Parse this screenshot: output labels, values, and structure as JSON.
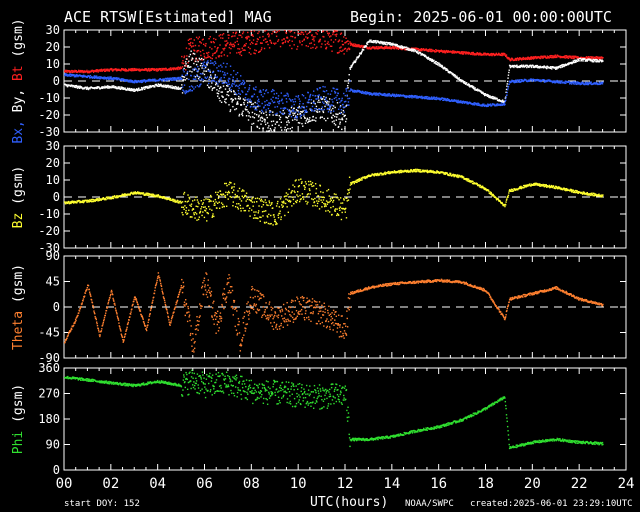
{
  "header": {
    "title": "ACE RTSW[Estimated] MAG",
    "begin": "Begin: 2025-06-01 00:00:00UTC"
  },
  "footer": {
    "start_doy": "start DOY:  152",
    "xlabel": "UTC(hours)",
    "credit": "NOAA/SWPC",
    "created": "created:2025-06-01 23:29:10UTC"
  },
  "colors": {
    "background": "#000000",
    "axes": "#ffffff",
    "bx": "#3060ff",
    "by": "#ffffff",
    "bt": "#ff2020",
    "bz": "#ffff30",
    "theta": "#ff8030",
    "phi": "#30e030"
  },
  "chart_data": [
    {
      "type": "scatter",
      "panel": "Bx, By, Bt",
      "ylabel_parts": [
        {
          "text": "Bx,",
          "color": "#3060ff"
        },
        {
          "text": " By,",
          "color": "#ffffff"
        },
        {
          "text": " Bt",
          "color": "#ff2020"
        },
        {
          "text": "  (gsm)",
          "color": "#ffffff"
        }
      ],
      "ylim": [
        -30,
        30
      ],
      "yticks": [
        30,
        20,
        10,
        0,
        -10,
        -20,
        -30
      ],
      "zero_line": true,
      "series": [
        {
          "name": "Bt",
          "color": "#ff2020",
          "x": [
            0,
            1,
            2,
            3,
            4,
            5,
            5.3,
            6,
            7,
            8,
            9,
            10,
            11,
            12,
            12.2,
            13,
            14,
            15,
            16,
            17,
            18,
            18.8,
            19,
            20,
            21,
            22,
            23
          ],
          "y": [
            6,
            6,
            7,
            7,
            7,
            8,
            18,
            20,
            22,
            23,
            28,
            26,
            26,
            23,
            22,
            20,
            20,
            19,
            18,
            17,
            16,
            16,
            13,
            14,
            15,
            14,
            14
          ]
        },
        {
          "name": "By",
          "color": "#ffffff",
          "x": [
            0,
            1,
            2,
            3,
            4,
            5,
            5.3,
            6,
            7,
            8,
            9,
            10,
            11,
            12,
            12.2,
            13,
            14,
            15,
            16,
            17,
            18,
            18.8,
            19,
            20,
            21,
            22,
            23
          ],
          "y": [
            -2,
            -4,
            -3,
            -5,
            -2,
            -4,
            12,
            6,
            -10,
            -18,
            -26,
            -20,
            -15,
            -22,
            8,
            24,
            22,
            18,
            10,
            0,
            -8,
            -12,
            9,
            9,
            8,
            13,
            12
          ]
        },
        {
          "name": "Bx",
          "color": "#3060ff",
          "x": [
            0,
            1,
            2,
            3,
            4,
            5,
            5.3,
            6,
            7,
            8,
            9,
            10,
            11,
            12,
            12.2,
            13,
            14,
            15,
            16,
            17,
            18,
            18.8,
            19,
            20,
            21,
            22,
            23
          ],
          "y": [
            4,
            3,
            2,
            0,
            1,
            2,
            -2,
            6,
            4,
            -10,
            -12,
            -15,
            -10,
            -12,
            -5,
            -7,
            -8,
            -9,
            -10,
            -12,
            -14,
            -13,
            0,
            1,
            0,
            -1,
            -1
          ]
        }
      ]
    },
    {
      "type": "scatter",
      "panel": "Bz",
      "ylabel_parts": [
        {
          "text": "Bz",
          "color": "#ffff30"
        },
        {
          "text": "  (gsm)",
          "color": "#ffffff"
        }
      ],
      "ylim": [
        -30,
        30
      ],
      "yticks": [
        30,
        20,
        10,
        0,
        -10,
        -20,
        -30
      ],
      "zero_line": true,
      "series": [
        {
          "name": "Bz",
          "color": "#ffff30",
          "x": [
            0,
            1,
            2,
            3,
            4,
            5,
            5.3,
            6,
            7,
            8,
            9,
            10,
            11,
            12,
            12.2,
            13,
            14,
            15,
            16,
            17,
            18,
            18.8,
            19,
            20,
            21,
            22,
            23
          ],
          "y": [
            -3,
            -2,
            0,
            3,
            1,
            -3,
            -5,
            -8,
            3,
            -5,
            -10,
            5,
            0,
            -8,
            8,
            13,
            15,
            16,
            15,
            12,
            5,
            -5,
            4,
            8,
            6,
            3,
            1
          ]
        }
      ]
    },
    {
      "type": "scatter",
      "panel": "Theta",
      "ylabel_parts": [
        {
          "text": "Theta",
          "color": "#ff8030"
        },
        {
          "text": "  (gsm)",
          "color": "#ffffff"
        }
      ],
      "ylim": [
        -90,
        90
      ],
      "yticks": [
        90,
        45,
        0,
        -45,
        -90
      ],
      "zero_line": true,
      "series": [
        {
          "name": "Theta",
          "color": "#ff8030",
          "x": [
            0,
            0.5,
            1,
            1.5,
            2,
            2.5,
            3,
            3.5,
            4,
            4.5,
            5,
            5.5,
            6,
            6.5,
            7,
            7.5,
            8,
            9,
            10,
            11,
            12,
            12.2,
            13,
            14,
            15,
            16,
            17,
            18,
            18.8,
            19,
            20,
            21,
            22,
            23
          ],
          "y": [
            -60,
            -20,
            40,
            -50,
            30,
            -60,
            20,
            -40,
            60,
            -30,
            40,
            -70,
            50,
            -30,
            45,
            -55,
            20,
            -20,
            0,
            -10,
            -40,
            25,
            35,
            42,
            45,
            48,
            45,
            30,
            -20,
            15,
            25,
            35,
            15,
            5
          ]
        }
      ]
    },
    {
      "type": "scatter",
      "panel": "Phi",
      "ylabel_parts": [
        {
          "text": "Phi",
          "color": "#30e030"
        },
        {
          "text": "  (gsm)",
          "color": "#ffffff"
        }
      ],
      "ylim": [
        0,
        360
      ],
      "yticks": [
        360,
        270,
        180,
        90,
        0
      ],
      "zero_line": false,
      "series": [
        {
          "name": "Phi",
          "color": "#30e030",
          "x": [
            0,
            1,
            2,
            3,
            4,
            5,
            5.5,
            6,
            7,
            8,
            9,
            10,
            11,
            12,
            12.2,
            13,
            14,
            15,
            16,
            17,
            18,
            18.8,
            19,
            20,
            21,
            22,
            23
          ],
          "y": [
            330,
            320,
            310,
            300,
            315,
            300,
            320,
            300,
            310,
            280,
            275,
            265,
            260,
            270,
            110,
            110,
            120,
            140,
            155,
            180,
            220,
            260,
            80,
            100,
            110,
            100,
            95
          ]
        }
      ]
    }
  ],
  "x_axis": {
    "xlim": [
      0,
      24
    ],
    "tick_labels": [
      "00",
      "02",
      "04",
      "06",
      "08",
      "10",
      "12",
      "14",
      "16",
      "18",
      "20",
      "22",
      "24"
    ],
    "minor_step_hours": 0.5
  }
}
